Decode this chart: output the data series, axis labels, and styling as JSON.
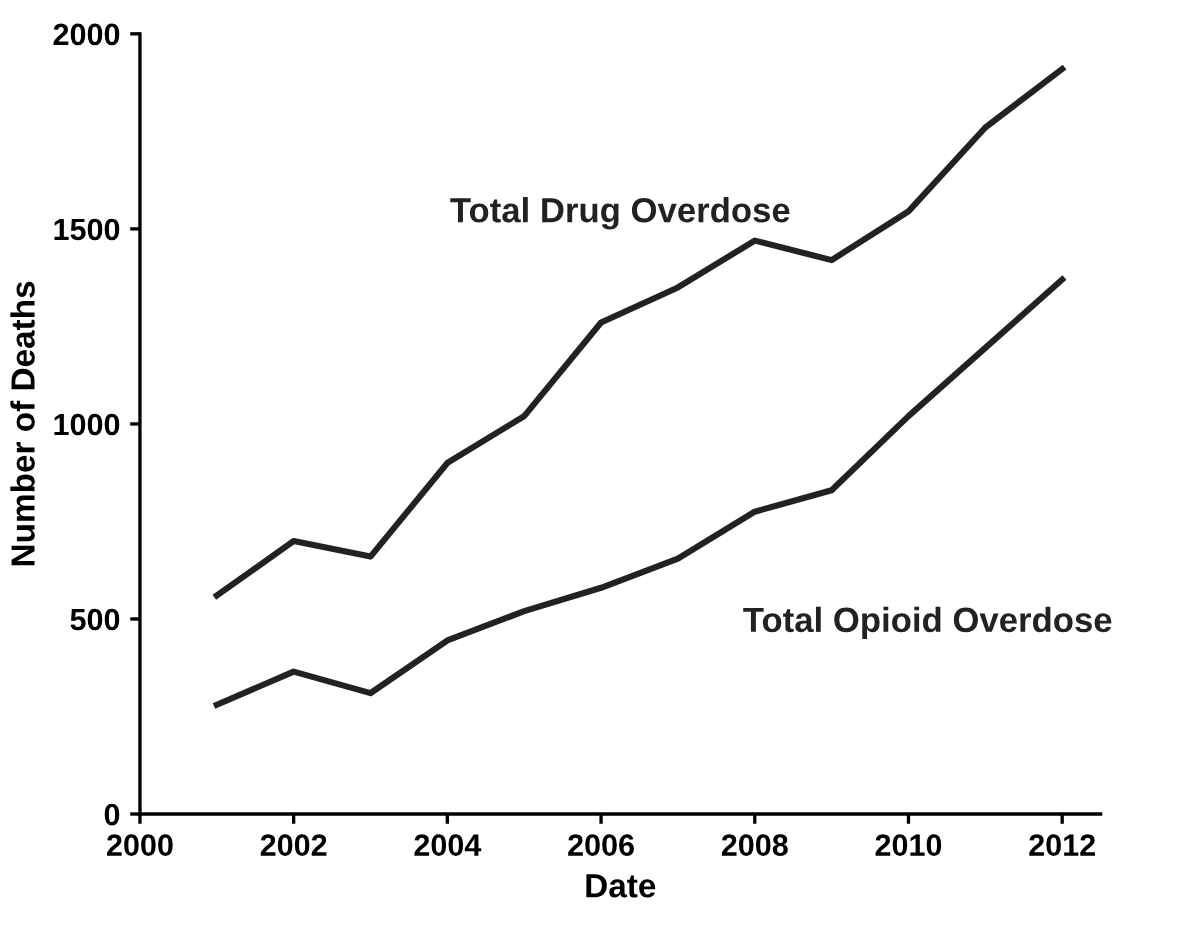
{
  "chart_data": {
    "type": "line",
    "xlabel": "Date",
    "ylabel": "Number of Deaths",
    "x": [
      2001,
      2002,
      2003,
      2004,
      2005,
      2006,
      2007,
      2008,
      2009,
      2010,
      2011,
      2012
    ],
    "series": [
      {
        "name": "Total Drug Overdose",
        "color": "#222222",
        "values": [
          560,
          700,
          660,
          900,
          1020,
          1260,
          1350,
          1470,
          1420,
          1545,
          1760,
          1910
        ]
      },
      {
        "name": "Total Opioid Overdose",
        "color": "#222222",
        "values": [
          280,
          365,
          310,
          445,
          520,
          580,
          655,
          775,
          830,
          1020,
          1195,
          1370
        ]
      }
    ],
    "xlim": [
      2000,
      2012.5
    ],
    "xticks": [
      2000,
      2002,
      2004,
      2006,
      2008,
      2010,
      2012
    ],
    "ylim": [
      0,
      2000
    ],
    "yticks": [
      0,
      500,
      1000,
      1500,
      2000
    ],
    "grid": false,
    "legend": false,
    "marker": "none",
    "line_style": "solid"
  }
}
